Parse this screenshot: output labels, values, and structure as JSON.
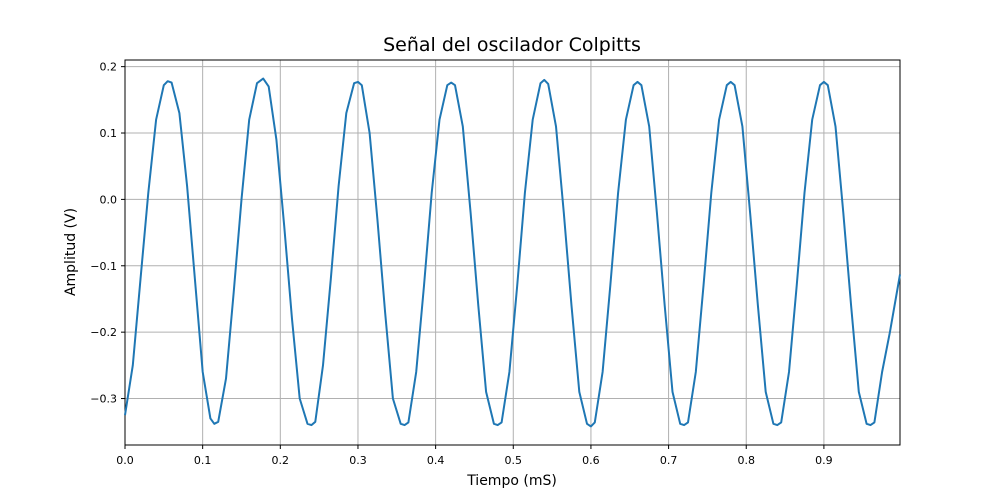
{
  "chart_data": {
    "type": "line",
    "title": "Señal del oscilador Colpitts",
    "xlabel": "Tiempo (mS)",
    "ylabel": "Amplitud (V)",
    "xlim": [
      0,
      0.998
    ],
    "ylim": [
      -0.37,
      0.21
    ],
    "xticks": [
      0.0,
      0.1,
      0.2,
      0.3,
      0.4,
      0.5,
      0.6,
      0.7,
      0.8,
      0.9
    ],
    "xtick_labels": [
      "0.0",
      "0.1",
      "0.2",
      "0.3",
      "0.4",
      "0.5",
      "0.6",
      "0.7",
      "0.8",
      "0.9"
    ],
    "yticks": [
      0.2,
      0.1,
      0.0,
      -0.1,
      -0.2,
      -0.3
    ],
    "ytick_labels": [
      "0.2",
      "0.1",
      "0.0",
      "−0.1",
      "−0.2",
      "−0.3"
    ],
    "grid": true,
    "legend": false,
    "colors": {
      "line": "#1f77b4"
    },
    "series": [
      {
        "x": [
          0.0,
          0.01,
          0.02,
          0.03,
          0.04,
          0.05,
          0.055,
          0.06,
          0.07,
          0.08,
          0.09,
          0.1,
          0.11,
          0.115,
          0.12,
          0.13,
          0.14,
          0.15,
          0.16,
          0.17,
          0.178,
          0.185,
          0.195,
          0.205,
          0.215,
          0.225,
          0.235,
          0.24,
          0.245,
          0.255,
          0.265,
          0.275,
          0.285,
          0.295,
          0.3,
          0.305,
          0.315,
          0.325,
          0.335,
          0.345,
          0.355,
          0.36,
          0.365,
          0.375,
          0.385,
          0.395,
          0.405,
          0.415,
          0.42,
          0.425,
          0.435,
          0.445,
          0.455,
          0.465,
          0.475,
          0.48,
          0.485,
          0.495,
          0.505,
          0.515,
          0.525,
          0.535,
          0.54,
          0.545,
          0.555,
          0.565,
          0.575,
          0.585,
          0.595,
          0.6,
          0.605,
          0.615,
          0.625,
          0.635,
          0.645,
          0.655,
          0.66,
          0.665,
          0.675,
          0.685,
          0.695,
          0.705,
          0.715,
          0.72,
          0.725,
          0.735,
          0.745,
          0.755,
          0.765,
          0.775,
          0.78,
          0.785,
          0.795,
          0.805,
          0.815,
          0.825,
          0.835,
          0.84,
          0.845,
          0.855,
          0.865,
          0.875,
          0.885,
          0.895,
          0.9,
          0.905,
          0.915,
          0.925,
          0.935,
          0.945,
          0.955,
          0.96,
          0.965,
          0.975,
          0.985,
          0.998
        ],
        "y": [
          -0.325,
          -0.25,
          -0.12,
          0.01,
          0.12,
          0.172,
          0.178,
          0.176,
          0.13,
          0.02,
          -0.12,
          -0.26,
          -0.33,
          -0.338,
          -0.335,
          -0.27,
          -0.14,
          0.0,
          0.12,
          0.175,
          0.182,
          0.17,
          0.09,
          -0.04,
          -0.18,
          -0.3,
          -0.338,
          -0.34,
          -0.335,
          -0.25,
          -0.12,
          0.02,
          0.13,
          0.175,
          0.177,
          0.172,
          0.1,
          -0.03,
          -0.17,
          -0.3,
          -0.338,
          -0.34,
          -0.336,
          -0.26,
          -0.13,
          0.01,
          0.12,
          0.172,
          0.176,
          0.172,
          0.11,
          -0.02,
          -0.16,
          -0.29,
          -0.338,
          -0.34,
          -0.336,
          -0.26,
          -0.13,
          0.01,
          0.12,
          0.175,
          0.18,
          0.174,
          0.11,
          -0.02,
          -0.16,
          -0.29,
          -0.338,
          -0.342,
          -0.336,
          -0.26,
          -0.13,
          0.01,
          0.12,
          0.172,
          0.177,
          0.172,
          0.11,
          -0.02,
          -0.16,
          -0.29,
          -0.338,
          -0.34,
          -0.336,
          -0.26,
          -0.13,
          0.01,
          0.12,
          0.172,
          0.177,
          0.172,
          0.11,
          -0.02,
          -0.16,
          -0.29,
          -0.338,
          -0.34,
          -0.336,
          -0.26,
          -0.13,
          0.01,
          0.12,
          0.172,
          0.177,
          0.172,
          0.11,
          -0.02,
          -0.16,
          -0.29,
          -0.338,
          -0.34,
          -0.336,
          -0.26,
          -0.2,
          -0.113
        ]
      }
    ]
  }
}
